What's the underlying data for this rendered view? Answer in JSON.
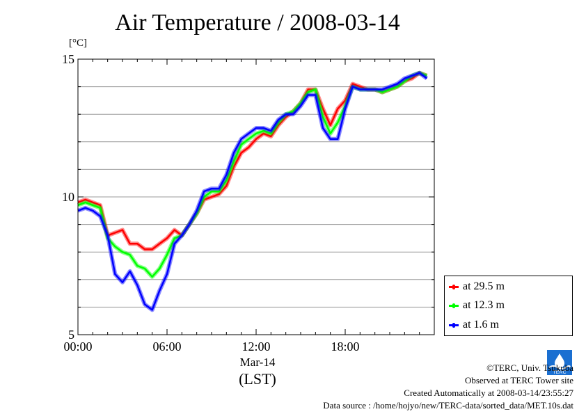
{
  "chart_data": {
    "type": "line",
    "title": "Air Temperature / 2008-03-14",
    "ylabel": "[°C]",
    "xlabel": "(LST)",
    "x_date_label": "Mar-14",
    "ylim": [
      5,
      15
    ],
    "yticks": [
      "5",
      "10",
      "15"
    ],
    "xlim_hours": [
      0,
      24
    ],
    "xticks": [
      "00:00",
      "06:00",
      "12:00",
      "18:00"
    ],
    "grid": true,
    "legend_position": "bottom-right",
    "x_hours": [
      0,
      0.5,
      1,
      1.5,
      2,
      2.5,
      3,
      3.5,
      4,
      4.5,
      5,
      5.5,
      6,
      6.5,
      7,
      7.5,
      8,
      8.5,
      9,
      9.5,
      10,
      10.5,
      11,
      11.5,
      12,
      12.5,
      13,
      13.5,
      14,
      14.5,
      15,
      15.5,
      16,
      16.5,
      17,
      17.5,
      18,
      18.5,
      19,
      19.5,
      20,
      20.5,
      21,
      21.5,
      22,
      22.5,
      23,
      23.5
    ],
    "series": [
      {
        "name": "at 29.5 m",
        "color": "#ff0000",
        "values": [
          9.8,
          9.9,
          9.8,
          9.7,
          8.6,
          8.7,
          8.8,
          8.3,
          8.3,
          8.1,
          8.1,
          8.3,
          8.5,
          8.8,
          8.6,
          9.0,
          9.4,
          9.9,
          10.0,
          10.1,
          10.4,
          11.1,
          11.6,
          11.8,
          12.1,
          12.3,
          12.2,
          12.6,
          12.9,
          13.1,
          13.4,
          13.9,
          13.9,
          13.2,
          12.6,
          13.2,
          13.5,
          14.1,
          14.0,
          13.9,
          13.9,
          13.8,
          13.9,
          14.0,
          14.2,
          14.3,
          14.5,
          14.4
        ]
      },
      {
        "name": "at 12.3 m",
        "color": "#00ff00",
        "values": [
          9.7,
          9.8,
          9.7,
          9.6,
          8.5,
          8.2,
          8.0,
          7.9,
          7.5,
          7.4,
          7.1,
          7.4,
          7.9,
          8.5,
          8.6,
          9.0,
          9.4,
          10.0,
          10.2,
          10.2,
          10.6,
          11.3,
          11.9,
          12.1,
          12.3,
          12.4,
          12.3,
          12.7,
          13.0,
          13.1,
          13.4,
          13.8,
          13.9,
          12.9,
          12.3,
          12.7,
          13.3,
          14.0,
          13.9,
          13.9,
          13.9,
          13.8,
          13.9,
          14.0,
          14.2,
          14.4,
          14.5,
          14.4
        ]
      },
      {
        "name": "at 1.6 m",
        "color": "#0000ff",
        "values": [
          9.5,
          9.6,
          9.5,
          9.3,
          8.6,
          7.2,
          6.9,
          7.3,
          6.8,
          6.1,
          5.9,
          6.6,
          7.2,
          8.3,
          8.6,
          9.0,
          9.5,
          10.2,
          10.3,
          10.3,
          10.8,
          11.6,
          12.1,
          12.3,
          12.5,
          12.5,
          12.4,
          12.8,
          13.0,
          13.0,
          13.3,
          13.7,
          13.7,
          12.5,
          12.1,
          12.1,
          13.2,
          14.0,
          13.9,
          13.9,
          13.9,
          13.9,
          14.0,
          14.1,
          14.3,
          14.4,
          14.5,
          14.3
        ]
      }
    ]
  },
  "footer": {
    "copyright": "©TERC, Univ. Tsukuba",
    "observed": "Observed at TERC Tower site",
    "created": "Created Automatically at 2008-03-14/23:55:27",
    "source": "Data source : /home/hojyo/new/TERC-data/sorted_data/MET.10s.dat",
    "logo_text": "TERC"
  },
  "colors": {
    "grid": "#999999",
    "axis": "#000000",
    "logo": "#1a6fd1"
  }
}
